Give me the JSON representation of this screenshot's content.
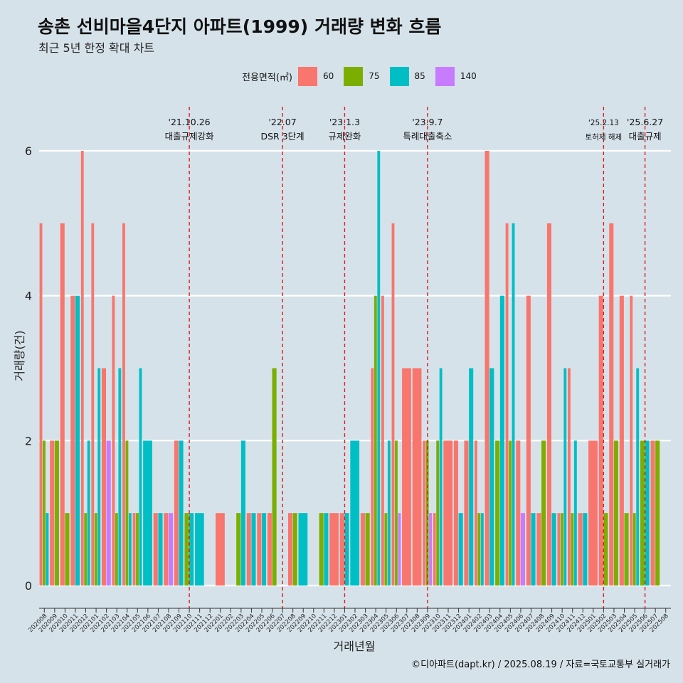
{
  "title": "송촌 선비마을4단지 아파트(1999) 거래량 변화 흐름",
  "subtitle": "최근 5년 한정 확대 차트",
  "caption": "©디아파트(dapt.kr) / 2025.08.19 / 자료=국토교통부 실거래가",
  "chart_data": {
    "type": "bar",
    "title": "송촌 선비마을4단지 아파트(1999) 거래량 변화 흐름",
    "xlabel": "거래년월",
    "ylabel": "거래량(건)",
    "ylim": [
      0,
      6.6
    ],
    "yticks": [
      0,
      2,
      4,
      6
    ],
    "legend_title": "전용면적(㎡)",
    "legend_position": "top",
    "series_colors": {
      "60": "#F8766D",
      "75": "#7CAE00",
      "85": "#00BFC4",
      "140": "#C77CFF"
    },
    "categories": [
      "202008",
      "202009",
      "202010",
      "202011",
      "202012",
      "202101",
      "202102",
      "202103",
      "202104",
      "202105",
      "202106",
      "202107",
      "202108",
      "202109",
      "202110",
      "202111",
      "202112",
      "202201",
      "202202",
      "202203",
      "202204",
      "202205",
      "202206",
      "202207",
      "202208",
      "202209",
      "202210",
      "202211",
      "202212",
      "202301",
      "202302",
      "202303",
      "202304",
      "202305",
      "202306",
      "202307",
      "202308",
      "202309",
      "202310",
      "202311",
      "202312",
      "202401",
      "202402",
      "202403",
      "202404",
      "202405",
      "202406",
      "202407",
      "202408",
      "202409",
      "202410",
      "202411",
      "202412",
      "202501",
      "202502",
      "202503",
      "202504",
      "202505",
      "202506",
      "202507",
      "202508"
    ],
    "data": [
      {
        "month": "202008",
        "bars": [
          {
            "area": "60",
            "count": 5
          },
          {
            "area": "75",
            "count": 2
          },
          {
            "area": "85",
            "count": 1
          }
        ]
      },
      {
        "month": "202009",
        "bars": [
          {
            "area": "60",
            "count": 2
          },
          {
            "area": "75",
            "count": 2
          }
        ]
      },
      {
        "month": "202010",
        "bars": [
          {
            "area": "60",
            "count": 5
          },
          {
            "area": "75",
            "count": 1
          }
        ]
      },
      {
        "month": "202011",
        "bars": [
          {
            "area": "60",
            "count": 4
          },
          {
            "area": "85",
            "count": 4
          }
        ]
      },
      {
        "month": "202012",
        "bars": [
          {
            "area": "60",
            "count": 6
          },
          {
            "area": "75",
            "count": 1
          },
          {
            "area": "85",
            "count": 2
          }
        ]
      },
      {
        "month": "202101",
        "bars": [
          {
            "area": "60",
            "count": 5
          },
          {
            "area": "75",
            "count": 1
          },
          {
            "area": "85",
            "count": 3
          }
        ]
      },
      {
        "month": "202102",
        "bars": [
          {
            "area": "60",
            "count": 3
          },
          {
            "area": "140",
            "count": 2
          }
        ]
      },
      {
        "month": "202103",
        "bars": [
          {
            "area": "60",
            "count": 4
          },
          {
            "area": "75",
            "count": 1
          },
          {
            "area": "85",
            "count": 3
          }
        ]
      },
      {
        "month": "202104",
        "bars": [
          {
            "area": "60",
            "count": 5
          },
          {
            "area": "75",
            "count": 2
          },
          {
            "area": "85",
            "count": 1
          }
        ]
      },
      {
        "month": "202105",
        "bars": [
          {
            "area": "60",
            "count": 1
          },
          {
            "area": "75",
            "count": 1
          },
          {
            "area": "85",
            "count": 3
          }
        ]
      },
      {
        "month": "202106",
        "bars": [
          {
            "area": "85",
            "count": 2
          }
        ]
      },
      {
        "month": "202107",
        "bars": [
          {
            "area": "60",
            "count": 1
          },
          {
            "area": "85",
            "count": 1
          }
        ]
      },
      {
        "month": "202108",
        "bars": [
          {
            "area": "60",
            "count": 1
          },
          {
            "area": "140",
            "count": 1
          }
        ]
      },
      {
        "month": "202109",
        "bars": [
          {
            "area": "60",
            "count": 2
          },
          {
            "area": "85",
            "count": 2
          }
        ]
      },
      {
        "month": "202110",
        "bars": [
          {
            "area": "75",
            "count": 1
          },
          {
            "area": "85",
            "count": 1
          }
        ]
      },
      {
        "month": "202111",
        "bars": [
          {
            "area": "85",
            "count": 1
          }
        ]
      },
      {
        "month": "202112",
        "bars": []
      },
      {
        "month": "202201",
        "bars": [
          {
            "area": "60",
            "count": 1
          }
        ]
      },
      {
        "month": "202202",
        "bars": []
      },
      {
        "month": "202203",
        "bars": [
          {
            "area": "75",
            "count": 1
          },
          {
            "area": "85",
            "count": 2
          }
        ]
      },
      {
        "month": "202204",
        "bars": [
          {
            "area": "60",
            "count": 1
          },
          {
            "area": "85",
            "count": 1
          }
        ]
      },
      {
        "month": "202205",
        "bars": [
          {
            "area": "60",
            "count": 1
          },
          {
            "area": "85",
            "count": 1
          }
        ]
      },
      {
        "month": "202206",
        "bars": [
          {
            "area": "60",
            "count": 1
          },
          {
            "area": "75",
            "count": 3
          }
        ]
      },
      {
        "month": "202207",
        "bars": []
      },
      {
        "month": "202208",
        "bars": [
          {
            "area": "60",
            "count": 1
          },
          {
            "area": "75",
            "count": 1
          }
        ]
      },
      {
        "month": "202209",
        "bars": [
          {
            "area": "85",
            "count": 1
          }
        ]
      },
      {
        "month": "202210",
        "bars": []
      },
      {
        "month": "202211",
        "bars": [
          {
            "area": "75",
            "count": 1
          },
          {
            "area": "85",
            "count": 1
          }
        ]
      },
      {
        "month": "202212",
        "bars": [
          {
            "area": "60",
            "count": 1
          }
        ]
      },
      {
        "month": "202301",
        "bars": [
          {
            "area": "60",
            "count": 1
          },
          {
            "area": "85",
            "count": 1
          }
        ]
      },
      {
        "month": "202302",
        "bars": [
          {
            "area": "85",
            "count": 2
          }
        ]
      },
      {
        "month": "202303",
        "bars": [
          {
            "area": "60",
            "count": 1
          },
          {
            "area": "75",
            "count": 1
          }
        ]
      },
      {
        "month": "202304",
        "bars": [
          {
            "area": "60",
            "count": 3
          },
          {
            "area": "75",
            "count": 4
          },
          {
            "area": "85",
            "count": 6
          }
        ]
      },
      {
        "month": "202305",
        "bars": [
          {
            "area": "60",
            "count": 4
          },
          {
            "area": "75",
            "count": 1
          },
          {
            "area": "85",
            "count": 2
          }
        ]
      },
      {
        "month": "202306",
        "bars": [
          {
            "area": "60",
            "count": 5
          },
          {
            "area": "75",
            "count": 2
          },
          {
            "area": "140",
            "count": 1
          }
        ]
      },
      {
        "month": "202307",
        "bars": [
          {
            "area": "60",
            "count": 3
          }
        ]
      },
      {
        "month": "202308",
        "bars": [
          {
            "area": "60",
            "count": 3
          }
        ]
      },
      {
        "month": "202309",
        "bars": [
          {
            "area": "60",
            "count": 2
          },
          {
            "area": "75",
            "count": 2
          },
          {
            "area": "140",
            "count": 1
          }
        ]
      },
      {
        "month": "202310",
        "bars": [
          {
            "area": "60",
            "count": 1
          },
          {
            "area": "75",
            "count": 2
          },
          {
            "area": "85",
            "count": 3
          }
        ]
      },
      {
        "month": "202311",
        "bars": [
          {
            "area": "60",
            "count": 2
          }
        ]
      },
      {
        "month": "202312",
        "bars": [
          {
            "area": "60",
            "count": 2
          },
          {
            "area": "85",
            "count": 1
          }
        ]
      },
      {
        "month": "202401",
        "bars": [
          {
            "area": "60",
            "count": 2
          },
          {
            "area": "85",
            "count": 3
          }
        ]
      },
      {
        "month": "202402",
        "bars": [
          {
            "area": "60",
            "count": 2
          },
          {
            "area": "75",
            "count": 1
          },
          {
            "area": "85",
            "count": 1
          }
        ]
      },
      {
        "month": "202403",
        "bars": [
          {
            "area": "60",
            "count": 6
          },
          {
            "area": "85",
            "count": 3
          }
        ]
      },
      {
        "month": "202404",
        "bars": [
          {
            "area": "75",
            "count": 2
          },
          {
            "area": "85",
            "count": 4
          }
        ]
      },
      {
        "month": "202405",
        "bars": [
          {
            "area": "60",
            "count": 5
          },
          {
            "area": "75",
            "count": 2
          },
          {
            "area": "85",
            "count": 5
          }
        ]
      },
      {
        "month": "202406",
        "bars": [
          {
            "area": "60",
            "count": 2
          },
          {
            "area": "140",
            "count": 1
          }
        ]
      },
      {
        "month": "202407",
        "bars": [
          {
            "area": "60",
            "count": 4
          },
          {
            "area": "85",
            "count": 1
          }
        ]
      },
      {
        "month": "202408",
        "bars": [
          {
            "area": "60",
            "count": 1
          },
          {
            "area": "75",
            "count": 2
          }
        ]
      },
      {
        "month": "202409",
        "bars": [
          {
            "area": "60",
            "count": 5
          },
          {
            "area": "85",
            "count": 1
          }
        ]
      },
      {
        "month": "202410",
        "bars": [
          {
            "area": "60",
            "count": 1
          },
          {
            "area": "75",
            "count": 1
          },
          {
            "area": "85",
            "count": 3
          }
        ]
      },
      {
        "month": "202411",
        "bars": [
          {
            "area": "60",
            "count": 3
          },
          {
            "area": "75",
            "count": 1
          },
          {
            "area": "85",
            "count": 2
          }
        ]
      },
      {
        "month": "202412",
        "bars": [
          {
            "area": "60",
            "count": 1
          },
          {
            "area": "85",
            "count": 1
          }
        ]
      },
      {
        "month": "202501",
        "bars": [
          {
            "area": "60",
            "count": 2
          }
        ]
      },
      {
        "month": "202502",
        "bars": [
          {
            "area": "60",
            "count": 4
          },
          {
            "area": "75",
            "count": 1
          }
        ]
      },
      {
        "month": "202503",
        "bars": [
          {
            "area": "60",
            "count": 5
          },
          {
            "area": "75",
            "count": 2
          }
        ]
      },
      {
        "month": "202504",
        "bars": [
          {
            "area": "60",
            "count": 4
          },
          {
            "area": "75",
            "count": 1
          }
        ]
      },
      {
        "month": "202505",
        "bars": [
          {
            "area": "60",
            "count": 4
          },
          {
            "area": "75",
            "count": 1
          },
          {
            "area": "85",
            "count": 3
          }
        ]
      },
      {
        "month": "202506",
        "bars": [
          {
            "area": "75",
            "count": 2
          },
          {
            "area": "85",
            "count": 2
          }
        ]
      },
      {
        "month": "202507",
        "bars": [
          {
            "area": "60",
            "count": 2
          },
          {
            "area": "75",
            "count": 2
          }
        ]
      },
      {
        "month": "202508",
        "bars": []
      }
    ],
    "annotations": [
      {
        "month": "202110",
        "date": "'21.10.26",
        "label": "대출규제강화"
      },
      {
        "month": "202207",
        "date": "'22.07",
        "label": "DSR 3단계"
      },
      {
        "month": "202301",
        "date": "'23.1.3",
        "label": "규제완화"
      },
      {
        "month": "202309",
        "date": "'23.9.7",
        "label": "특례대출축소"
      },
      {
        "month": "202502",
        "date": "'25.2.13",
        "label": "토허제 해제"
      },
      {
        "month": "202506",
        "date": "'25.6.27",
        "label": "대출규제"
      }
    ]
  }
}
